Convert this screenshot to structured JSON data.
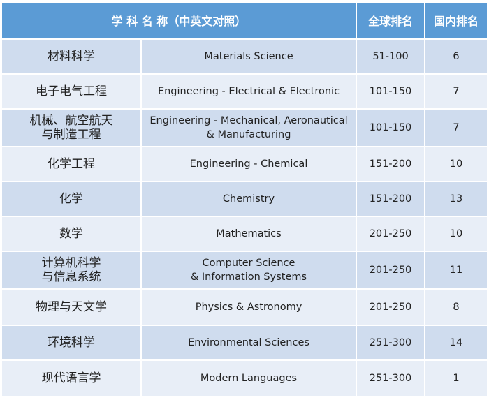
{
  "header": {
    "subject": "学 科 名 称（中英文对照）",
    "global_rank": "全球排名",
    "domestic_rank": "国内排名"
  },
  "colors": {
    "header": "#5b9bd5",
    "row_dark": "#cfdcee",
    "row_light": "#e8eef7"
  },
  "rows": [
    {
      "zh": [
        "材料科学"
      ],
      "en": [
        "Materials Science"
      ],
      "global": "51-100",
      "domestic": "6"
    },
    {
      "zh": [
        "电子电气工程"
      ],
      "en": [
        "Engineering - Electrical & Electronic"
      ],
      "global": "101-150",
      "domestic": "7"
    },
    {
      "zh": [
        "机械、航空航天",
        "与制造工程"
      ],
      "en": [
        "Engineering - Mechanical, Aeronautical",
        "& Manufacturing"
      ],
      "global": "101-150",
      "domestic": "7"
    },
    {
      "zh": [
        "化学工程"
      ],
      "en": [
        "Engineering - Chemical"
      ],
      "global": "151-200",
      "domestic": "10"
    },
    {
      "zh": [
        "化学"
      ],
      "en": [
        "Chemistry"
      ],
      "global": "151-200",
      "domestic": "13"
    },
    {
      "zh": [
        "数学"
      ],
      "en": [
        "Mathematics"
      ],
      "global": "201-250",
      "domestic": "10"
    },
    {
      "zh": [
        "计算机科学",
        "与信息系统"
      ],
      "en": [
        "Computer Science",
        "& Information Systems"
      ],
      "global": "201-250",
      "domestic": "11"
    },
    {
      "zh": [
        "物理与天文学"
      ],
      "en": [
        "Physics & Astronomy"
      ],
      "global": "201-250",
      "domestic": "8"
    },
    {
      "zh": [
        "环境科学"
      ],
      "en": [
        "Environmental Sciences"
      ],
      "global": "251-300",
      "domestic": "14"
    },
    {
      "zh": [
        "现代语言学"
      ],
      "en": [
        "Modern Languages"
      ],
      "global": "251-300",
      "domestic": "1"
    }
  ]
}
